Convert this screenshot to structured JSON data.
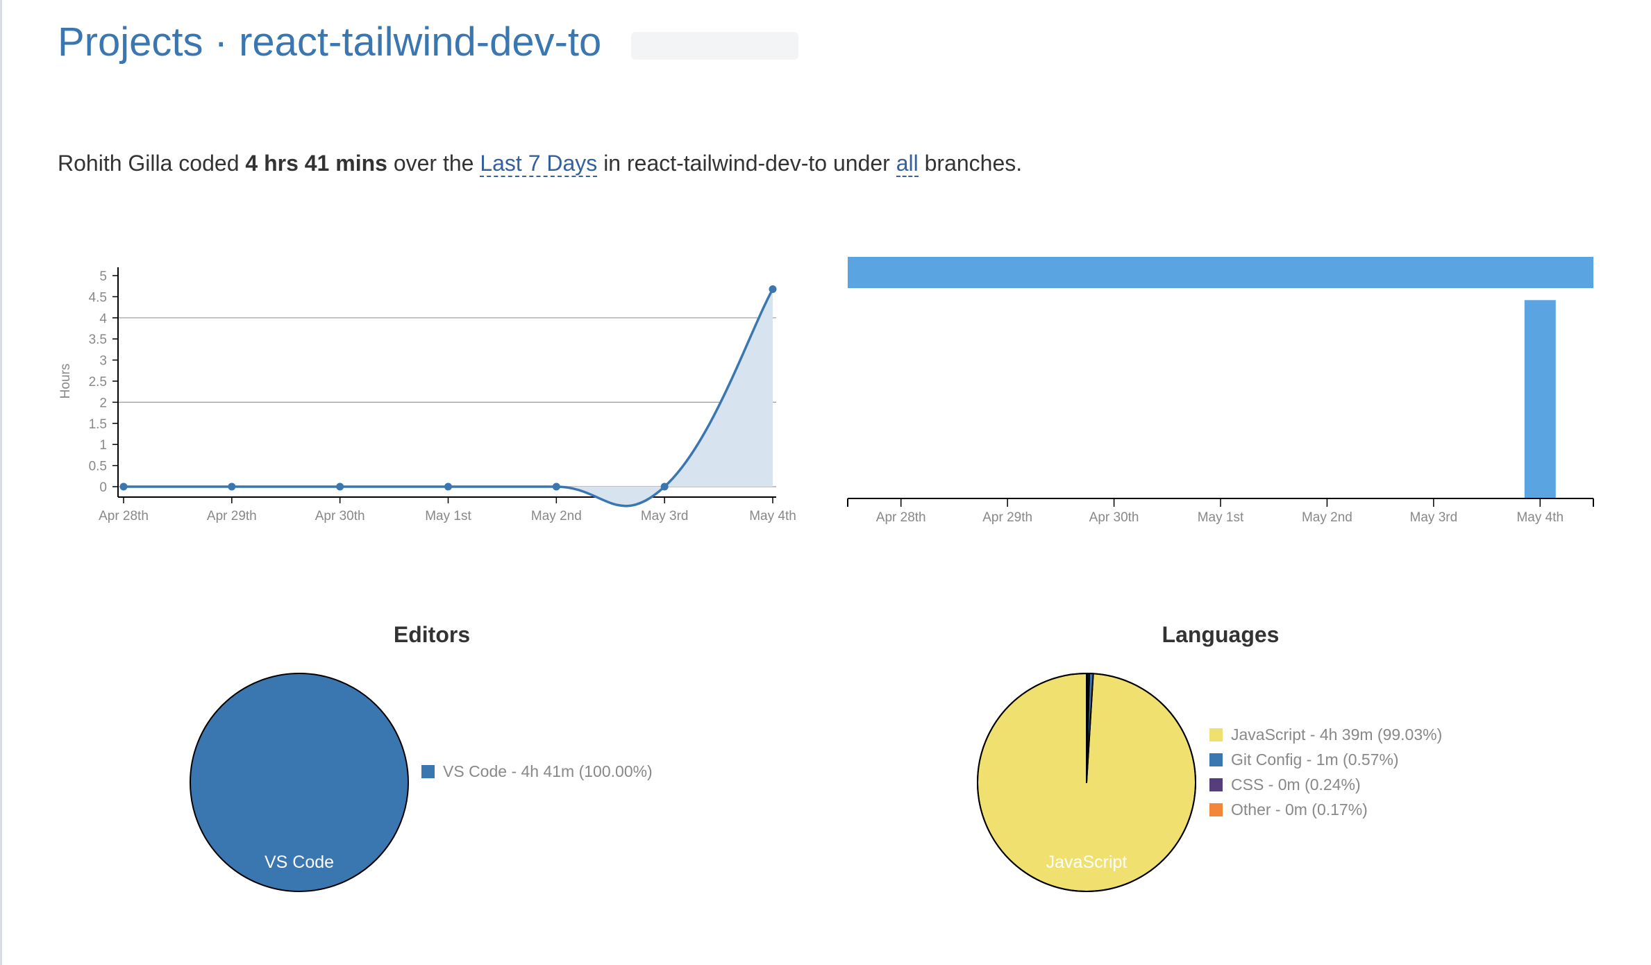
{
  "header": {
    "section": "Projects",
    "separator": "·",
    "project_name": "react-tailwind-dev-to"
  },
  "summary": {
    "user": "Rohith Gilla",
    "coded_word": "coded",
    "duration": "4 hrs 41 mins",
    "over_the": "over the",
    "range_link": "Last 7 Days",
    "in_text": "in react-tailwind-dev-to under",
    "branch_link": "all",
    "branches_text": "branches."
  },
  "colors": {
    "link": "#3a76af",
    "line": "#3a76af",
    "area_fill": "#d7e3ef",
    "bar": "#5ba4e2",
    "javascript": "#efe070",
    "git_config": "#3a76af",
    "css": "#563d7c",
    "other": "#f2873a"
  },
  "chart_data": [
    {
      "type": "area",
      "ylabel": "Hours",
      "ylim": [
        0,
        5
      ],
      "yticks": [
        "0",
        "0.5",
        "1",
        "1.5",
        "2",
        "2.5",
        "3",
        "3.5",
        "4",
        "4.5",
        "5"
      ],
      "categories": [
        "Apr 28th",
        "Apr 29th",
        "Apr 30th",
        "May 1st",
        "May 2nd",
        "May 3rd",
        "May 4th"
      ],
      "values": [
        0,
        0,
        0,
        0,
        0,
        0,
        4.68
      ],
      "grid": "y"
    },
    {
      "type": "bar",
      "categories": [
        "Apr 28th",
        "Apr 29th",
        "Apr 30th",
        "May 1st",
        "May 2nd",
        "May 3rd",
        "May 4th"
      ],
      "values": [
        0,
        0,
        0,
        0,
        0,
        0,
        4.68
      ],
      "ylim": [
        0,
        5.7
      ]
    },
    {
      "type": "pie",
      "title": "Editors",
      "slices": [
        {
          "label": "VS Code",
          "legend": "VS Code - 4h 41m (100.00%)",
          "value": 100.0,
          "color": "#3a76af"
        }
      ]
    },
    {
      "type": "pie",
      "title": "Languages",
      "slices": [
        {
          "label": "JavaScript",
          "legend": "JavaScript - 4h 39m (99.03%)",
          "value": 99.03,
          "color": "#efe070"
        },
        {
          "label": "Git Config",
          "legend": "Git Config - 1m (0.57%)",
          "value": 0.57,
          "color": "#3a76af"
        },
        {
          "label": "CSS",
          "legend": "CSS - 0m (0.24%)",
          "value": 0.24,
          "color": "#563d7c"
        },
        {
          "label": "Other",
          "legend": "Other - 0m (0.17%)",
          "value": 0.17,
          "color": "#f2873a"
        }
      ]
    }
  ]
}
